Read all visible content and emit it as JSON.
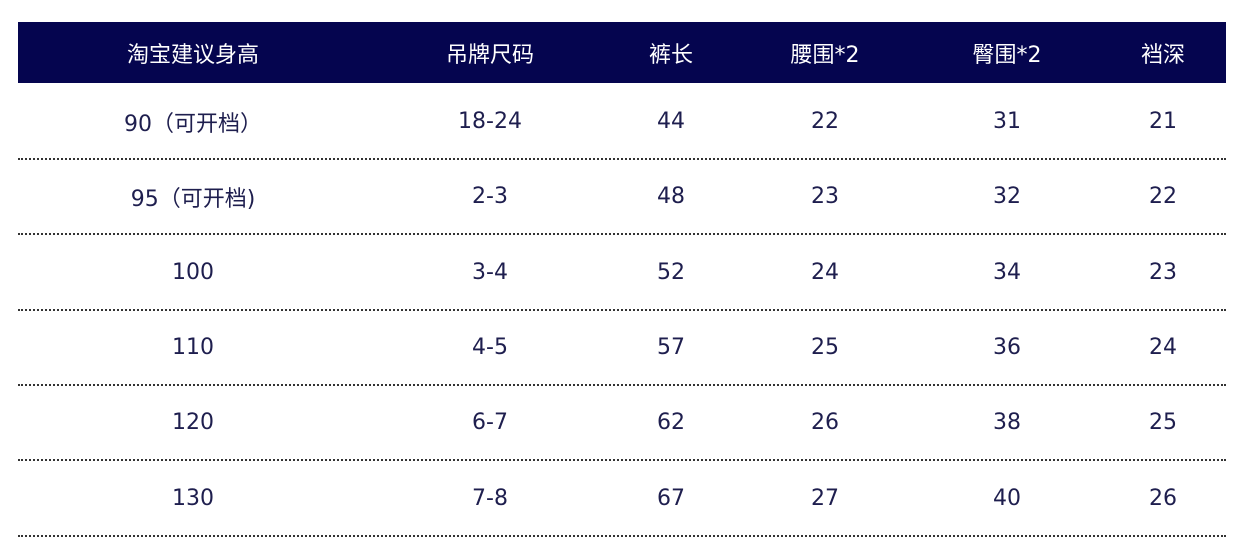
{
  "table": {
    "header": [
      "淘宝建议身高",
      "吊牌尺码",
      "裤长",
      "腰围*2",
      "臀围*2",
      "裆深"
    ],
    "rows": [
      [
        "90（可开档）",
        "18-24",
        44,
        22,
        31,
        21
      ],
      [
        "95（可开档)",
        "2-3",
        48,
        23,
        32,
        22
      ],
      [
        100,
        "3-4",
        52,
        24,
        34,
        23
      ],
      [
        110,
        "4-5",
        57,
        25,
        36,
        24
      ],
      [
        120,
        "6-7",
        62,
        26,
        38,
        25
      ],
      [
        130,
        "7-8",
        67,
        27,
        40,
        26
      ]
    ]
  }
}
